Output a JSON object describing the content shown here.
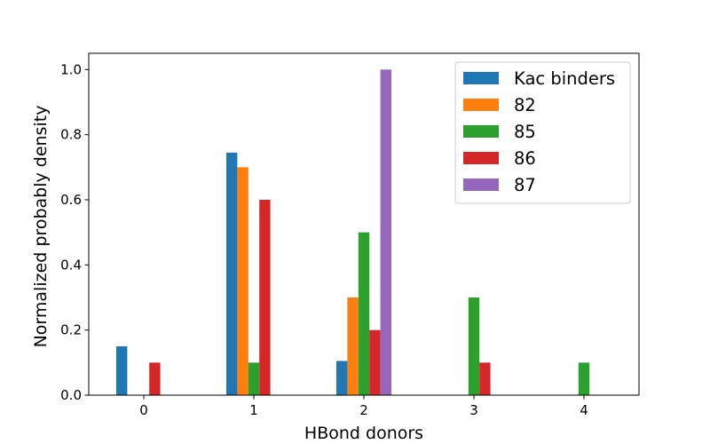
{
  "chart_data": {
    "type": "bar",
    "xlabel": "HBond donors",
    "ylabel": "Normalized probably density",
    "categories": [
      "0",
      "1",
      "2",
      "3",
      "4"
    ],
    "x": [
      0,
      1,
      2,
      3,
      4
    ],
    "ylim": [
      0,
      1.05
    ],
    "xlim": [
      -0.5,
      4.5
    ],
    "yticks": [
      "0.0",
      "0.2",
      "0.4",
      "0.6",
      "0.8",
      "1.0"
    ],
    "grid": false,
    "legend_position": "top-right",
    "series": [
      {
        "name": "Kac binders",
        "color": "#1f77b4",
        "values": [
          0.15,
          0.745,
          0.105,
          0,
          0
        ]
      },
      {
        "name": "82",
        "color": "#ff7f0e",
        "values": [
          0,
          0.7,
          0.3,
          0,
          0
        ]
      },
      {
        "name": "85",
        "color": "#2ca02c",
        "values": [
          0,
          0.1,
          0.5,
          0.3,
          0.1
        ]
      },
      {
        "name": "86",
        "color": "#d62728",
        "values": [
          0.1,
          0.6,
          0.2,
          0.1,
          0
        ]
      },
      {
        "name": "87",
        "color": "#9467bd",
        "values": [
          0,
          0,
          1.0,
          0,
          0
        ]
      }
    ]
  }
}
